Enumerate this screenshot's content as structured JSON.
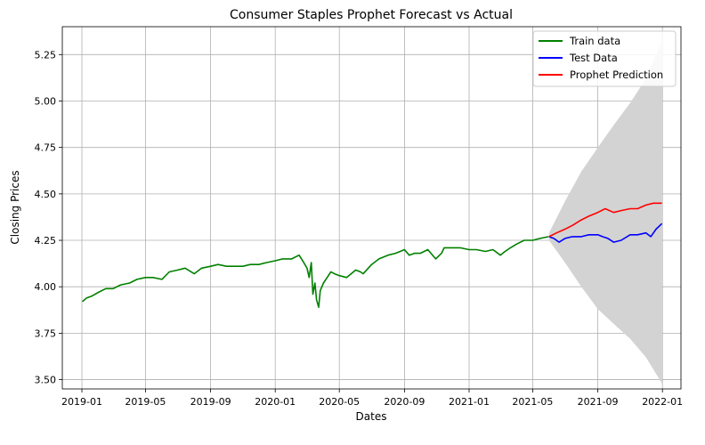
{
  "chart_data": {
    "type": "line",
    "title": "Consumer Staples Prophet Forecast vs Actual",
    "xlabel": "Dates",
    "ylabel": "Closing Prices",
    "xlim": [
      "2018-11-25",
      "2022-02-05"
    ],
    "ylim": [
      3.45,
      5.4
    ],
    "x_ticks": [
      "2019-01",
      "2019-05",
      "2019-09",
      "2020-01",
      "2020-05",
      "2020-09",
      "2021-01",
      "2021-05",
      "2021-09",
      "2022-01"
    ],
    "y_ticks": [
      "3.50",
      "3.75",
      "4.00",
      "4.25",
      "4.50",
      "4.75",
      "5.00",
      "5.25"
    ],
    "grid": true,
    "legend_position": "top-right",
    "colors": {
      "train": "#008000",
      "test": "#0000ff",
      "prediction": "#ff0000",
      "interval": "#d3d3d3"
    },
    "series": [
      {
        "name": "Train data",
        "color": "#008000",
        "x": [
          "2019-01-02",
          "2019-01-10",
          "2019-01-20",
          "2019-02-01",
          "2019-02-15",
          "2019-03-01",
          "2019-03-15",
          "2019-04-01",
          "2019-04-15",
          "2019-05-01",
          "2019-05-15",
          "2019-06-01",
          "2019-06-15",
          "2019-07-01",
          "2019-07-15",
          "2019-08-01",
          "2019-08-15",
          "2019-09-01",
          "2019-09-15",
          "2019-10-01",
          "2019-10-15",
          "2019-11-01",
          "2019-11-15",
          "2019-12-01",
          "2019-12-15",
          "2020-01-01",
          "2020-01-15",
          "2020-02-01",
          "2020-02-15",
          "2020-02-24",
          "2020-03-01",
          "2020-03-05",
          "2020-03-09",
          "2020-03-12",
          "2020-03-16",
          "2020-03-19",
          "2020-03-23",
          "2020-03-26",
          "2020-04-01",
          "2020-04-08",
          "2020-04-15",
          "2020-04-22",
          "2020-05-01",
          "2020-05-15",
          "2020-06-01",
          "2020-06-10",
          "2020-06-15",
          "2020-07-01",
          "2020-07-15",
          "2020-08-01",
          "2020-08-15",
          "2020-09-01",
          "2020-09-10",
          "2020-09-20",
          "2020-10-01",
          "2020-10-15",
          "2020-10-30",
          "2020-11-10",
          "2020-11-15",
          "2020-12-01",
          "2020-12-15",
          "2021-01-01",
          "2021-01-15",
          "2021-02-01",
          "2021-02-15",
          "2021-03-01",
          "2021-03-10",
          "2021-03-20",
          "2021-04-01",
          "2021-04-15",
          "2021-05-01",
          "2021-05-15",
          "2021-05-31"
        ],
        "y": [
          3.92,
          3.94,
          3.95,
          3.97,
          3.99,
          3.99,
          4.01,
          4.02,
          4.04,
          4.05,
          4.05,
          4.04,
          4.08,
          4.09,
          4.1,
          4.07,
          4.1,
          4.11,
          4.12,
          4.11,
          4.11,
          4.11,
          4.12,
          4.12,
          4.13,
          4.14,
          4.15,
          4.15,
          4.17,
          4.13,
          4.1,
          4.05,
          4.13,
          3.96,
          4.02,
          3.93,
          3.89,
          3.98,
          4.02,
          4.05,
          4.08,
          4.07,
          4.06,
          4.05,
          4.09,
          4.08,
          4.07,
          4.12,
          4.15,
          4.17,
          4.18,
          4.2,
          4.17,
          4.18,
          4.18,
          4.2,
          4.15,
          4.18,
          4.21,
          4.21,
          4.21,
          4.2,
          4.2,
          4.19,
          4.2,
          4.17,
          4.19,
          4.21,
          4.23,
          4.25,
          4.25,
          4.26,
          4.27
        ]
      },
      {
        "name": "Test Data",
        "color": "#0000ff",
        "x": [
          "2021-06-01",
          "2021-06-10",
          "2021-06-20",
          "2021-07-01",
          "2021-07-15",
          "2021-08-01",
          "2021-08-15",
          "2021-09-01",
          "2021-09-10",
          "2021-09-20",
          "2021-10-01",
          "2021-10-15",
          "2021-11-01",
          "2021-11-15",
          "2021-12-01",
          "2021-12-10",
          "2021-12-20",
          "2021-12-31"
        ],
        "y": [
          4.27,
          4.26,
          4.24,
          4.26,
          4.27,
          4.27,
          4.28,
          4.28,
          4.27,
          4.26,
          4.24,
          4.25,
          4.28,
          4.28,
          4.29,
          4.27,
          4.31,
          4.34
        ]
      },
      {
        "name": "Prophet Prediction",
        "color": "#ff0000",
        "x": [
          "2021-06-01",
          "2021-06-15",
          "2021-07-01",
          "2021-07-15",
          "2021-08-01",
          "2021-08-15",
          "2021-09-01",
          "2021-09-15",
          "2021-10-01",
          "2021-10-15",
          "2021-11-01",
          "2021-11-15",
          "2021-12-01",
          "2021-12-15",
          "2021-12-31"
        ],
        "y": [
          4.27,
          4.29,
          4.31,
          4.33,
          4.36,
          4.38,
          4.4,
          4.42,
          4.4,
          4.41,
          4.42,
          4.42,
          4.44,
          4.45,
          4.45
        ]
      }
    ],
    "interval": {
      "x": [
        "2021-06-01",
        "2021-07-01",
        "2021-08-01",
        "2021-09-01",
        "2021-10-01",
        "2021-11-01",
        "2021-12-01",
        "2021-12-31"
      ],
      "lower": [
        4.25,
        4.13,
        4.0,
        3.88,
        3.8,
        3.72,
        3.62,
        3.48
      ],
      "upper": [
        4.29,
        4.46,
        4.62,
        4.75,
        4.87,
        4.99,
        5.12,
        5.32
      ]
    }
  }
}
